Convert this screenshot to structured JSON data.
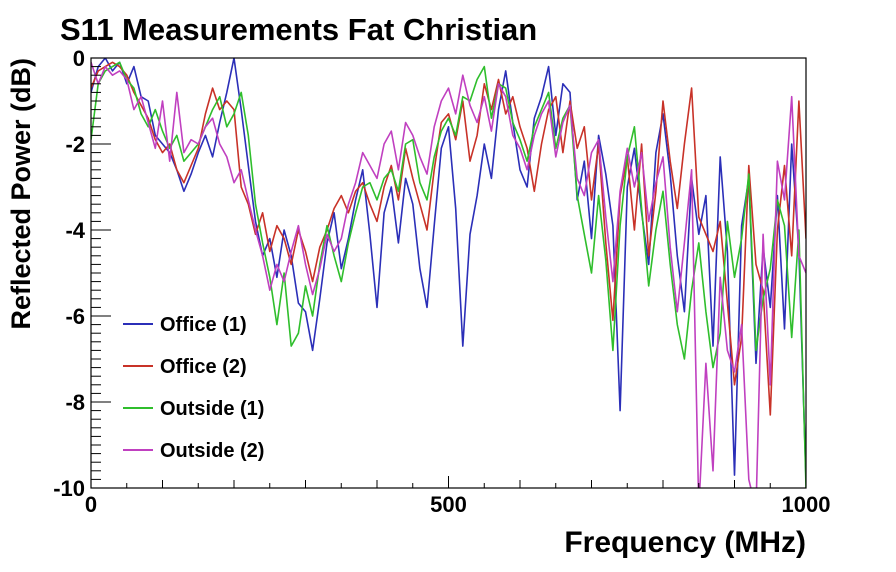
{
  "chart_data": {
    "type": "line",
    "title": "S11 Measurements Fat Christian",
    "xlabel": "Frequency (MHz)",
    "ylabel": "Reflected Power (dB)",
    "xlim": [
      0,
      1000
    ],
    "ylim": [
      -10,
      0
    ],
    "x_ticks": [
      0,
      500,
      1000
    ],
    "y_ticks": [
      0,
      -2,
      -4,
      -6,
      -8,
      -10
    ],
    "x_tick_labels": [
      "0",
      "500",
      "1000"
    ],
    "y_tick_labels": [
      "0",
      "-2",
      "-4",
      "-6",
      "-8",
      "-10"
    ],
    "grid": false,
    "legend_position": "bottom-left",
    "x": [
      0,
      10,
      20,
      30,
      40,
      50,
      60,
      70,
      80,
      90,
      100,
      110,
      120,
      130,
      140,
      150,
      160,
      170,
      180,
      190,
      200,
      210,
      220,
      230,
      240,
      250,
      260,
      270,
      280,
      290,
      300,
      310,
      320,
      330,
      340,
      350,
      360,
      370,
      380,
      390,
      400,
      410,
      420,
      430,
      440,
      450,
      460,
      470,
      480,
      490,
      500,
      510,
      520,
      530,
      540,
      550,
      560,
      570,
      580,
      590,
      600,
      610,
      620,
      630,
      640,
      650,
      660,
      670,
      680,
      690,
      700,
      710,
      720,
      730,
      740,
      750,
      760,
      770,
      780,
      790,
      800,
      810,
      820,
      830,
      840,
      850,
      860,
      870,
      880,
      890,
      900,
      910,
      920,
      930,
      940,
      950,
      960,
      970,
      980,
      990,
      1000
    ],
    "series": [
      {
        "name": "Office (1)",
        "color": "#2b2fb8",
        "values": [
          -0.8,
          -0.2,
          0.0,
          -0.3,
          -0.1,
          -0.6,
          -0.2,
          -0.9,
          -1.0,
          -1.8,
          -2.0,
          -2.2,
          -2.6,
          -3.1,
          -2.7,
          -2.2,
          -1.8,
          -2.3,
          -1.5,
          -0.8,
          0.0,
          -1.2,
          -2.5,
          -3.8,
          -4.6,
          -4.2,
          -5.1,
          -4.0,
          -4.6,
          -5.7,
          -5.9,
          -6.8,
          -5.6,
          -4.3,
          -3.6,
          -4.9,
          -4.2,
          -3.3,
          -2.6,
          -4.1,
          -5.8,
          -3.6,
          -3.0,
          -4.3,
          -2.8,
          -3.4,
          -4.9,
          -5.8,
          -3.9,
          -2.1,
          -1.6,
          -3.5,
          -6.7,
          -4.1,
          -3.2,
          -2.0,
          -2.8,
          -1.2,
          -0.3,
          -1.5,
          -2.6,
          -3.0,
          -1.4,
          -0.9,
          -0.2,
          -1.8,
          -0.6,
          -0.8,
          -3.3,
          -2.4,
          -4.2,
          -1.8,
          -2.7,
          -3.9,
          -8.2,
          -3.0,
          -2.1,
          -3.6,
          -4.8,
          -2.2,
          -1.3,
          -2.7,
          -4.6,
          -5.9,
          -2.8,
          -4.1,
          -3.2,
          -6.7,
          -2.3,
          -4.5,
          -9.7,
          -3.9,
          -2.8,
          -7.1,
          -4.4,
          -5.8,
          -3.2,
          -6.3,
          -2.0,
          -4.5,
          -9.8
        ]
      },
      {
        "name": "Office (2)",
        "color": "#c83228",
        "values": [
          -0.7,
          -0.3,
          -0.2,
          -0.1,
          -0.2,
          -0.4,
          -0.8,
          -1.1,
          -1.4,
          -1.9,
          -2.2,
          -2.0,
          -2.6,
          -2.9,
          -2.5,
          -2.1,
          -1.3,
          -0.7,
          -1.2,
          -1.0,
          -1.2,
          -3.0,
          -3.4,
          -4.1,
          -3.6,
          -4.5,
          -3.9,
          -4.2,
          -4.8,
          -4.0,
          -4.5,
          -5.2,
          -4.4,
          -4.0,
          -3.5,
          -3.2,
          -3.6,
          -3.1,
          -2.9,
          -3.4,
          -3.8,
          -3.0,
          -2.5,
          -3.3,
          -2.1,
          -2.8,
          -3.4,
          -4.0,
          -2.6,
          -1.5,
          -1.3,
          -1.9,
          -1.0,
          -2.4,
          -1.8,
          -0.6,
          -1.2,
          -0.5,
          -1.3,
          -0.9,
          -1.6,
          -2.1,
          -3.1,
          -2.0,
          -1.2,
          -0.9,
          -2.2,
          -1.0,
          -2.1,
          -1.6,
          -3.3,
          -2.0,
          -4.3,
          -6.1,
          -3.2,
          -2.3,
          -4.0,
          -2.0,
          -4.6,
          -3.1,
          -1.0,
          -2.4,
          -3.5,
          -2.0,
          -0.7,
          -3.7,
          -4.1,
          -4.5,
          -3.8,
          -5.7,
          -7.6,
          -6.5,
          -2.5,
          -4.8,
          -5.4,
          -8.3,
          -4.0,
          -2.5,
          -4.6,
          -1.0,
          -4.2
        ]
      },
      {
        "name": "Outside (1)",
        "color": "#2fbe2c",
        "values": [
          -1.9,
          -0.6,
          -0.3,
          -0.2,
          -0.1,
          -0.5,
          -0.7,
          -1.3,
          -1.6,
          -1.2,
          -1.7,
          -2.1,
          -1.8,
          -2.4,
          -2.2,
          -2.0,
          -1.6,
          -1.2,
          -0.9,
          -1.6,
          -1.3,
          -0.8,
          -1.8,
          -3.4,
          -4.3,
          -5.1,
          -6.2,
          -5.0,
          -6.7,
          -6.4,
          -5.3,
          -6.0,
          -4.8,
          -3.9,
          -4.6,
          -5.2,
          -4.3,
          -3.6,
          -3.0,
          -2.9,
          -3.3,
          -2.8,
          -2.6,
          -3.1,
          -2.0,
          -1.9,
          -2.9,
          -3.3,
          -2.3,
          -1.7,
          -1.4,
          -1.8,
          -0.9,
          -1.0,
          -0.5,
          -0.2,
          -1.4,
          -0.6,
          -0.7,
          -1.5,
          -1.9,
          -2.4,
          -1.6,
          -1.2,
          -0.8,
          -2.1,
          -1.4,
          -1.1,
          -3.2,
          -4.1,
          -5.0,
          -3.2,
          -4.7,
          -6.8,
          -3.9,
          -2.3,
          -1.6,
          -3.5,
          -5.3,
          -4.0,
          -3.1,
          -4.8,
          -6.2,
          -7.0,
          -5.4,
          -4.3,
          -5.9,
          -7.2,
          -6.4,
          -3.8,
          -5.1,
          -4.2,
          -2.7,
          -6.8,
          -5.6,
          -4.9,
          -3.3,
          -3.9,
          -6.5,
          -4.0,
          -10.0
        ]
      },
      {
        "name": "Outside (2)",
        "color": "#c040c0",
        "values": [
          -0.1,
          -0.6,
          -0.2,
          -0.4,
          -0.3,
          -0.5,
          -1.2,
          -0.9,
          -1.5,
          -2.1,
          -1.0,
          -2.4,
          -0.8,
          -2.2,
          -1.9,
          -2.0,
          -1.6,
          -1.4,
          -2.0,
          -2.3,
          -2.9,
          -2.6,
          -3.3,
          -4.0,
          -4.6,
          -5.4,
          -4.8,
          -5.2,
          -4.5,
          -3.9,
          -4.8,
          -5.5,
          -4.9,
          -4.1,
          -4.5,
          -4.2,
          -3.4,
          -2.9,
          -2.2,
          -2.5,
          -2.8,
          -2.0,
          -1.7,
          -2.6,
          -1.5,
          -1.8,
          -2.3,
          -2.7,
          -1.6,
          -1.0,
          -0.7,
          -1.3,
          -0.4,
          -1.1,
          -1.5,
          -0.9,
          -1.7,
          -0.6,
          -0.9,
          -1.8,
          -2.1,
          -2.6,
          -1.8,
          -1.3,
          -1.0,
          -2.3,
          -1.5,
          -1.1,
          -2.8,
          -3.2,
          -2.2,
          -1.9,
          -3.7,
          -5.2,
          -3.1,
          -2.1,
          -3.0,
          -2.2,
          -3.8,
          -2.9,
          -2.3,
          -4.4,
          -5.9,
          -4.3,
          -2.6,
          -10.5,
          -7.1,
          -9.6,
          -5.1,
          -6.8,
          -7.3,
          -6.2,
          -9.8,
          -10.5,
          -4.1,
          -7.6,
          -2.4,
          -3.3,
          -0.9,
          -4.6,
          -5.0
        ]
      }
    ]
  }
}
